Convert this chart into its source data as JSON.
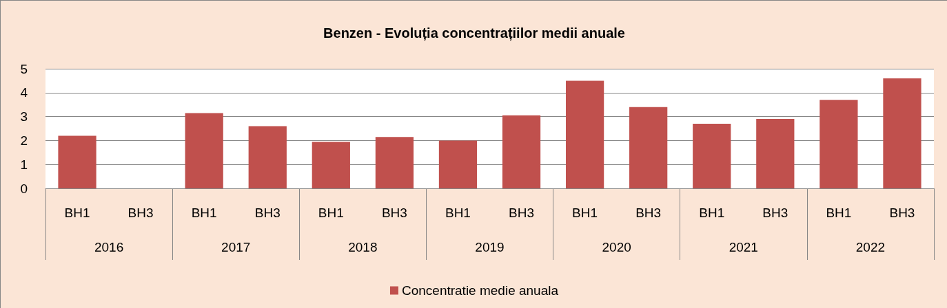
{
  "chart_data": {
    "type": "bar",
    "title": "Benzen - Evoluția concentrațiilor medii anuale",
    "categories": [
      "BH1",
      "BH3",
      "BH1",
      "BH3",
      "BH1",
      "BH3",
      "BH1",
      "BH3",
      "BH1",
      "BH3",
      "BH1",
      "BH3",
      "BH1",
      "BH3"
    ],
    "annotations": [
      "2016",
      "2017",
      "2018",
      "2019",
      "2020",
      "2021",
      "2022"
    ],
    "series": [
      {
        "name": "Concentratie medie anuala",
        "color": "#c0504d",
        "values": [
          2.2,
          null,
          3.15,
          2.6,
          1.95,
          2.15,
          2.0,
          3.05,
          4.5,
          3.4,
          2.7,
          2.9,
          3.7,
          4.6
        ]
      }
    ],
    "ylim": [
      0,
      5
    ],
    "yticks": [
      0,
      1,
      2,
      3,
      4,
      5
    ],
    "grid": "y",
    "legend": "bottom"
  }
}
